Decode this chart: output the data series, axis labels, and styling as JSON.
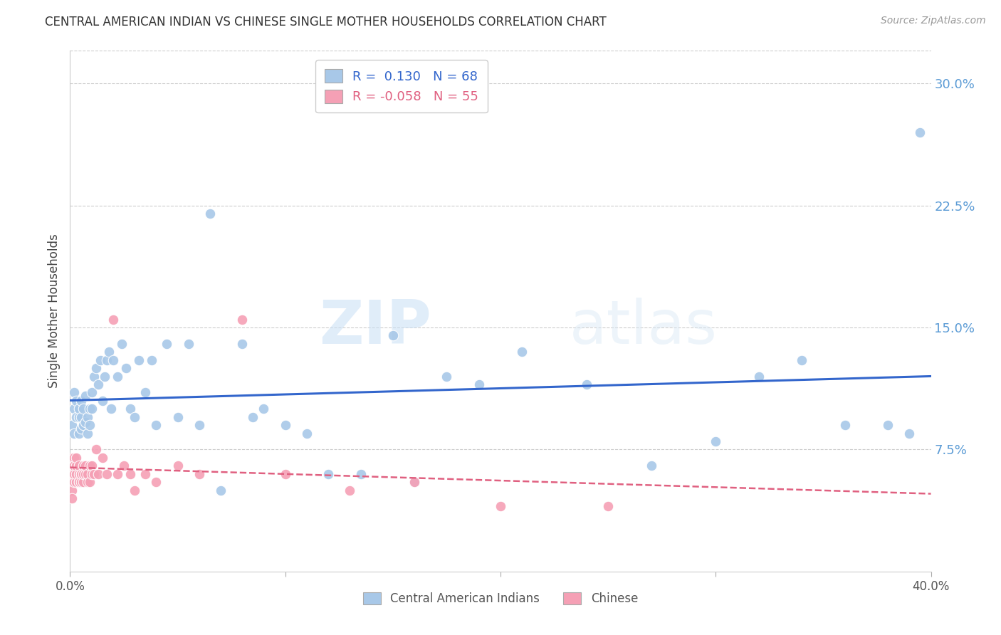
{
  "title": "CENTRAL AMERICAN INDIAN VS CHINESE SINGLE MOTHER HOUSEHOLDS CORRELATION CHART",
  "source": "Source: ZipAtlas.com",
  "ylabel": "Single Mother Households",
  "xlim": [
    0.0,
    0.4
  ],
  "ylim": [
    0.0,
    0.32
  ],
  "xtick_positions": [
    0.0,
    0.1,
    0.2,
    0.3,
    0.4
  ],
  "xtick_labels": [
    "0.0%",
    "",
    "",
    "",
    "40.0%"
  ],
  "ytick_positions": [
    0.075,
    0.15,
    0.225,
    0.3
  ],
  "ytick_labels": [
    "7.5%",
    "15.0%",
    "22.5%",
    "30.0%"
  ],
  "blue_R": 0.13,
  "blue_N": 68,
  "pink_R": -0.058,
  "pink_N": 55,
  "legend_label_blue": "Central American Indians",
  "legend_label_pink": "Chinese",
  "blue_color": "#a8c8e8",
  "pink_color": "#f5a0b5",
  "blue_line_color": "#3366cc",
  "pink_line_color": "#e06080",
  "background_color": "#ffffff",
  "grid_color": "#cccccc",
  "blue_scatter_x": [
    0.001,
    0.002,
    0.002,
    0.002,
    0.003,
    0.003,
    0.004,
    0.004,
    0.004,
    0.005,
    0.005,
    0.005,
    0.006,
    0.006,
    0.007,
    0.007,
    0.008,
    0.008,
    0.009,
    0.009,
    0.01,
    0.01,
    0.011,
    0.012,
    0.013,
    0.014,
    0.015,
    0.016,
    0.017,
    0.018,
    0.019,
    0.02,
    0.022,
    0.024,
    0.026,
    0.028,
    0.03,
    0.032,
    0.035,
    0.038,
    0.04,
    0.045,
    0.05,
    0.055,
    0.06,
    0.065,
    0.07,
    0.08,
    0.085,
    0.09,
    0.1,
    0.11,
    0.12,
    0.135,
    0.15,
    0.16,
    0.175,
    0.19,
    0.21,
    0.24,
    0.27,
    0.3,
    0.32,
    0.34,
    0.36,
    0.38,
    0.39,
    0.395
  ],
  "blue_scatter_y": [
    0.09,
    0.085,
    0.1,
    0.11,
    0.095,
    0.105,
    0.085,
    0.095,
    0.1,
    0.088,
    0.095,
    0.105,
    0.09,
    0.1,
    0.092,
    0.108,
    0.085,
    0.095,
    0.09,
    0.1,
    0.1,
    0.11,
    0.12,
    0.125,
    0.115,
    0.13,
    0.105,
    0.12,
    0.13,
    0.135,
    0.1,
    0.13,
    0.12,
    0.14,
    0.125,
    0.1,
    0.095,
    0.13,
    0.11,
    0.13,
    0.09,
    0.14,
    0.095,
    0.14,
    0.09,
    0.22,
    0.05,
    0.14,
    0.095,
    0.1,
    0.09,
    0.085,
    0.06,
    0.06,
    0.145,
    0.055,
    0.12,
    0.115,
    0.135,
    0.115,
    0.065,
    0.08,
    0.12,
    0.13,
    0.09,
    0.09,
    0.085,
    0.27
  ],
  "pink_scatter_x": [
    0.001,
    0.001,
    0.001,
    0.001,
    0.001,
    0.001,
    0.001,
    0.002,
    0.002,
    0.002,
    0.002,
    0.002,
    0.002,
    0.003,
    0.003,
    0.003,
    0.003,
    0.004,
    0.004,
    0.004,
    0.004,
    0.005,
    0.005,
    0.005,
    0.006,
    0.006,
    0.006,
    0.007,
    0.007,
    0.008,
    0.008,
    0.009,
    0.009,
    0.01,
    0.01,
    0.011,
    0.012,
    0.013,
    0.015,
    0.017,
    0.02,
    0.022,
    0.025,
    0.028,
    0.03,
    0.035,
    0.04,
    0.05,
    0.06,
    0.08,
    0.1,
    0.13,
    0.16,
    0.2,
    0.25
  ],
  "pink_scatter_y": [
    0.06,
    0.065,
    0.055,
    0.07,
    0.06,
    0.05,
    0.045,
    0.06,
    0.065,
    0.055,
    0.07,
    0.06,
    0.065,
    0.055,
    0.06,
    0.065,
    0.07,
    0.055,
    0.06,
    0.055,
    0.065,
    0.06,
    0.055,
    0.06,
    0.065,
    0.055,
    0.06,
    0.06,
    0.065,
    0.055,
    0.06,
    0.065,
    0.055,
    0.06,
    0.065,
    0.06,
    0.075,
    0.06,
    0.07,
    0.06,
    0.155,
    0.06,
    0.065,
    0.06,
    0.05,
    0.06,
    0.055,
    0.065,
    0.06,
    0.155,
    0.06,
    0.05,
    0.055,
    0.04,
    0.04
  ]
}
